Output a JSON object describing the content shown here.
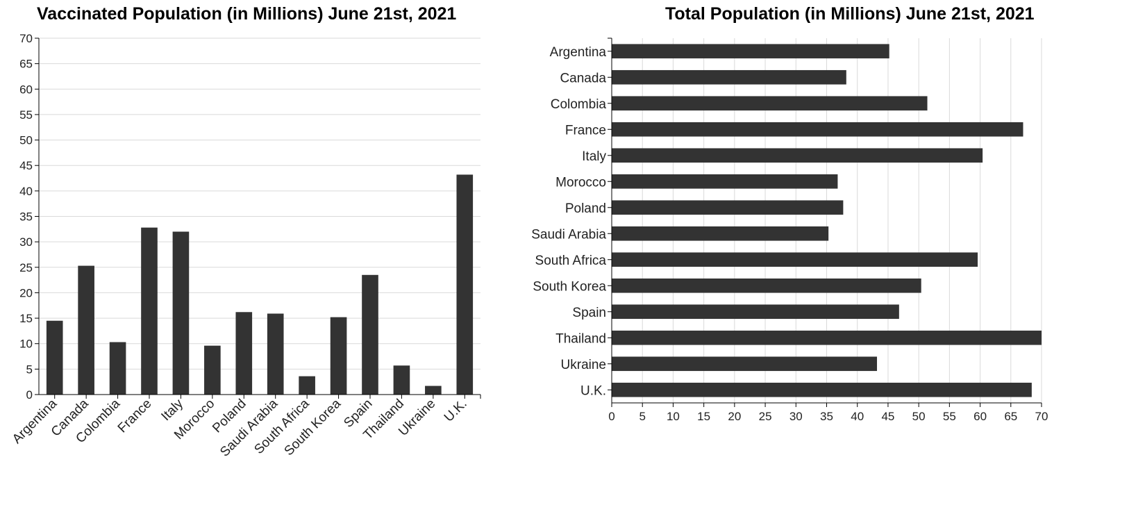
{
  "chart_data": [
    {
      "type": "bar",
      "orientation": "vertical",
      "title": "Vaccinated Population (in Millions) June 21st, 2021",
      "categories": [
        "Argentina",
        "Canada",
        "Colombia",
        "France",
        "Italy",
        "Morocco",
        "Poland",
        "Saudi Arabia",
        "South Africa",
        "South Korea",
        "Spain",
        "Thailand",
        "Ukraine",
        "U.K."
      ],
      "values": [
        14.5,
        25.3,
        10.3,
        32.8,
        32.0,
        9.6,
        16.2,
        15.9,
        3.6,
        15.2,
        23.5,
        5.7,
        1.7,
        43.2
      ],
      "y_ticks": [
        "0",
        "5",
        "10",
        "15",
        "20",
        "25",
        "30",
        "35",
        "40",
        "45",
        "50",
        "55",
        "60",
        "65",
        "70"
      ],
      "ylim": [
        0,
        70
      ],
      "grid": true,
      "bar_color": "#333333"
    },
    {
      "type": "bar",
      "orientation": "horizontal",
      "title": "Total Population (in Millions) June 21st, 2021",
      "categories": [
        "Argentina",
        "Canada",
        "Colombia",
        "France",
        "Italy",
        "Morocco",
        "Poland",
        "Saudi Arabia",
        "South Africa",
        "South Korea",
        "Spain",
        "Thailand",
        "Ukraine",
        "U.K."
      ],
      "values": [
        45.2,
        38.2,
        51.4,
        67.0,
        60.4,
        36.8,
        37.7,
        35.3,
        59.6,
        50.4,
        46.8,
        70.0,
        43.2,
        68.4
      ],
      "x_ticks": [
        "0",
        "5",
        "10",
        "15",
        "20",
        "25",
        "30",
        "35",
        "40",
        "45",
        "50",
        "55",
        "60",
        "65",
        "70"
      ],
      "xlim": [
        0,
        70
      ],
      "grid": true,
      "bar_color": "#333333"
    }
  ]
}
